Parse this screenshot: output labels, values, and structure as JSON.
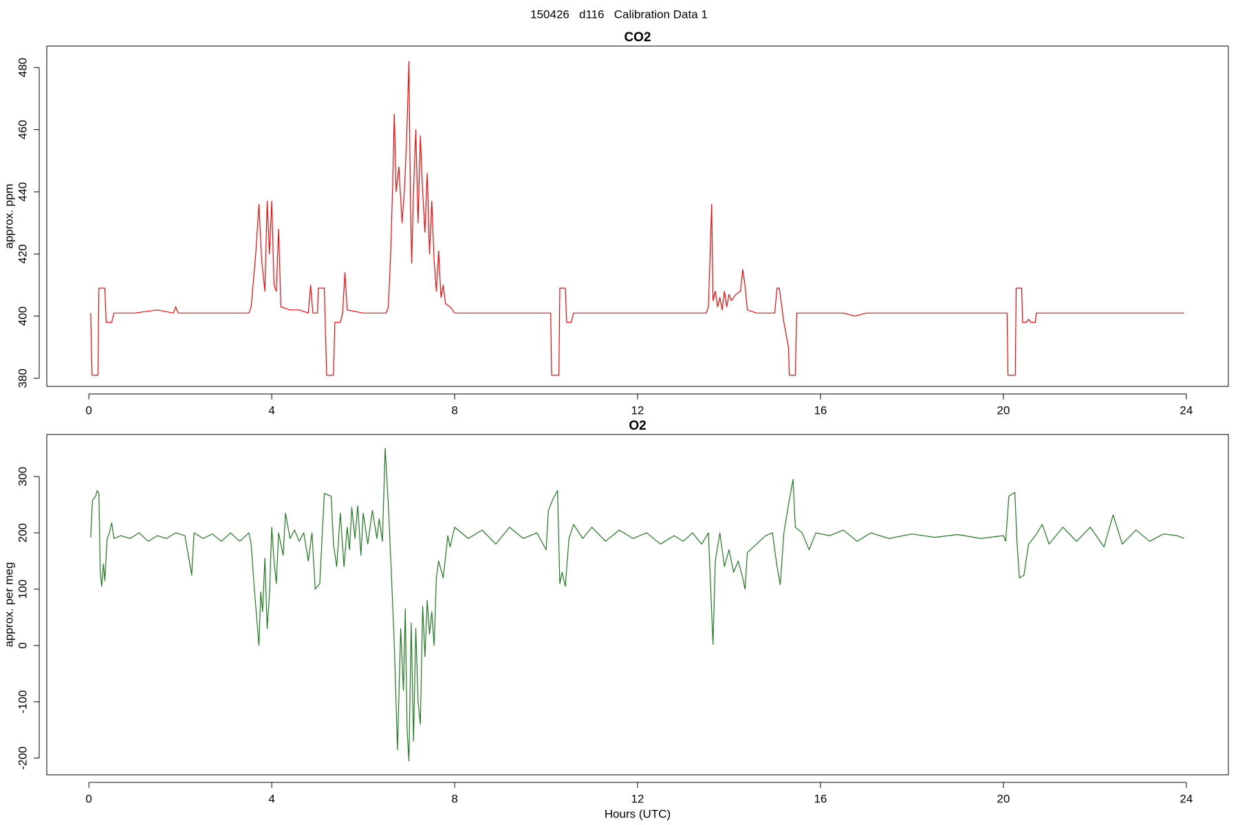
{
  "title": "150426   d116   Calibration Data 1",
  "chart_data": [
    {
      "type": "line",
      "title": "CO2",
      "ylabel": "approx. ppm",
      "x": [
        0.04,
        0.07,
        0.2,
        0.22,
        0.35,
        0.38,
        0.5,
        0.55,
        1.0,
        1.5,
        1.85,
        1.9,
        1.95,
        2.5,
        3.0,
        3.5,
        3.55,
        3.65,
        3.72,
        3.78,
        3.85,
        3.9,
        3.95,
        4.0,
        4.05,
        4.1,
        4.15,
        4.2,
        4.4,
        4.6,
        4.8,
        4.85,
        4.9,
        5.0,
        5.02,
        5.15,
        5.2,
        5.35,
        5.38,
        5.5,
        5.55,
        5.6,
        5.65,
        6.0,
        6.3,
        6.5,
        6.55,
        6.6,
        6.65,
        6.68,
        6.72,
        6.78,
        6.85,
        6.9,
        6.95,
        7.0,
        7.03,
        7.06,
        7.1,
        7.15,
        7.2,
        7.25,
        7.3,
        7.35,
        7.4,
        7.45,
        7.5,
        7.55,
        7.6,
        7.65,
        7.7,
        7.75,
        7.8,
        7.9,
        8.0,
        8.5,
        9.0,
        9.5,
        10.0,
        10.1,
        10.12,
        10.28,
        10.3,
        10.42,
        10.45,
        10.55,
        10.6,
        11.0,
        11.5,
        12.0,
        12.5,
        13.0,
        13.5,
        13.55,
        13.62,
        13.65,
        13.7,
        13.75,
        13.8,
        13.85,
        13.9,
        13.95,
        14.0,
        14.05,
        14.15,
        14.25,
        14.3,
        14.35,
        14.4,
        14.6,
        14.8,
        15.0,
        15.05,
        15.1,
        15.2,
        15.3,
        15.32,
        15.45,
        15.48,
        16.0,
        16.5,
        16.75,
        17.0,
        17.5,
        18.0,
        18.5,
        19.0,
        19.5,
        20.0,
        20.08,
        20.1,
        20.26,
        20.28,
        20.4,
        20.42,
        20.5,
        20.55,
        20.6,
        20.7,
        20.72,
        21.0,
        21.5,
        22.0,
        22.5,
        23.0,
        23.5,
        23.95
      ],
      "series": [
        {
          "name": "CO2",
          "color": "#ff0000",
          "values": [
            401,
            381,
            381,
            409,
            409,
            398,
            398,
            401,
            401,
            402,
            401,
            403,
            401,
            401,
            401,
            401,
            403,
            420,
            436,
            418,
            408,
            437,
            420,
            437,
            410,
            408,
            428,
            403,
            402,
            402,
            401,
            410,
            401,
            401,
            409,
            409,
            381,
            381,
            398,
            398,
            401,
            414,
            402,
            401,
            401,
            401,
            403,
            420,
            445,
            465,
            440,
            448,
            430,
            440,
            457,
            482,
            440,
            417,
            440,
            460,
            430,
            458,
            440,
            427,
            446,
            420,
            437,
            418,
            408,
            421,
            406,
            410,
            404,
            403,
            401,
            401,
            401,
            401,
            401,
            401,
            381,
            381,
            409,
            409,
            398,
            398,
            401,
            401,
            401,
            401,
            401,
            401,
            401,
            403,
            436,
            405,
            408,
            403,
            406,
            402,
            408,
            403,
            407,
            405,
            407,
            408,
            415,
            410,
            402,
            401,
            401,
            401,
            409,
            409,
            398,
            390,
            381,
            381,
            401,
            401,
            401,
            400,
            401,
            401,
            401,
            401,
            401,
            401,
            401,
            401,
            381,
            381,
            409,
            409,
            398,
            398,
            399,
            398,
            398,
            401,
            401,
            401,
            401,
            401,
            401,
            401,
            401
          ]
        }
      ],
      "xlim": [
        -0.92,
        24.92
      ],
      "xticks": [
        0,
        4,
        8,
        12,
        16,
        20,
        24
      ],
      "ylim": [
        377.4,
        486.9
      ],
      "yticks": [
        380,
        400,
        420,
        440,
        460,
        480
      ]
    },
    {
      "type": "line",
      "title": "O2",
      "ylabel": "approx. per meg",
      "xlabel": "Hours (UTC)",
      "x": [
        0.04,
        0.08,
        0.15,
        0.18,
        0.22,
        0.25,
        0.28,
        0.32,
        0.35,
        0.4,
        0.45,
        0.5,
        0.55,
        0.7,
        0.9,
        1.1,
        1.3,
        1.5,
        1.7,
        1.9,
        2.1,
        2.25,
        2.3,
        2.5,
        2.7,
        2.9,
        3.1,
        3.3,
        3.5,
        3.55,
        3.62,
        3.68,
        3.72,
        3.76,
        3.8,
        3.85,
        3.9,
        3.95,
        4.0,
        4.05,
        4.1,
        4.15,
        4.25,
        4.3,
        4.4,
        4.5,
        4.6,
        4.7,
        4.8,
        4.88,
        4.95,
        5.05,
        5.15,
        5.3,
        5.35,
        5.42,
        5.5,
        5.58,
        5.65,
        5.7,
        5.75,
        5.82,
        5.88,
        5.95,
        6.0,
        6.1,
        6.2,
        6.3,
        6.35,
        6.42,
        6.48,
        6.55,
        6.62,
        6.68,
        6.75,
        6.82,
        6.88,
        6.92,
        6.96,
        7.0,
        7.05,
        7.1,
        7.15,
        7.2,
        7.25,
        7.3,
        7.35,
        7.4,
        7.45,
        7.5,
        7.55,
        7.6,
        7.65,
        7.75,
        7.85,
        7.9,
        8.0,
        8.3,
        8.6,
        8.9,
        9.2,
        9.5,
        9.8,
        10.0,
        10.05,
        10.15,
        10.25,
        10.3,
        10.35,
        10.42,
        10.5,
        10.6,
        10.8,
        11.0,
        11.3,
        11.6,
        11.9,
        12.2,
        12.5,
        12.8,
        13.0,
        13.2,
        13.4,
        13.55,
        13.62,
        13.65,
        13.7,
        13.8,
        13.9,
        14.0,
        14.1,
        14.2,
        14.3,
        14.35,
        14.4,
        14.6,
        14.8,
        14.95,
        15.05,
        15.12,
        15.2,
        15.3,
        15.4,
        15.45,
        15.6,
        15.75,
        15.9,
        16.2,
        16.5,
        16.8,
        17.1,
        17.5,
        18.0,
        18.5,
        19.0,
        19.5,
        20.0,
        20.05,
        20.12,
        20.25,
        20.3,
        20.35,
        20.45,
        20.55,
        20.7,
        20.85,
        21.0,
        21.3,
        21.6,
        21.9,
        22.2,
        22.4,
        22.6,
        22.9,
        23.2,
        23.5,
        23.8,
        23.95
      ],
      "series": [
        {
          "name": "O2",
          "color": "#1a7a1a",
          "values": [
            192,
            258,
            265,
            275,
            270,
            130,
            105,
            145,
            115,
            190,
            200,
            218,
            190,
            195,
            190,
            200,
            185,
            195,
            190,
            200,
            195,
            125,
            200,
            190,
            198,
            185,
            200,
            185,
            200,
            180,
            100,
            40,
            0,
            95,
            60,
            155,
            30,
            90,
            210,
            150,
            110,
            200,
            160,
            235,
            190,
            205,
            185,
            200,
            150,
            200,
            100,
            110,
            270,
            265,
            180,
            140,
            235,
            140,
            210,
            170,
            245,
            190,
            248,
            160,
            235,
            180,
            240,
            190,
            225,
            185,
            350,
            250,
            120,
            0,
            -185,
            30,
            -80,
            65,
            -150,
            -205,
            40,
            -170,
            30,
            -100,
            -140,
            70,
            -20,
            80,
            20,
            60,
            0,
            120,
            150,
            120,
            195,
            175,
            210,
            190,
            205,
            180,
            210,
            190,
            200,
            170,
            240,
            260,
            275,
            110,
            130,
            105,
            190,
            215,
            190,
            210,
            185,
            205,
            190,
            200,
            180,
            195,
            185,
            200,
            180,
            200,
            60,
            2,
            150,
            200,
            140,
            170,
            130,
            150,
            120,
            100,
            165,
            180,
            195,
            200,
            140,
            108,
            200,
            250,
            295,
            210,
            200,
            170,
            200,
            195,
            205,
            185,
            200,
            190,
            198,
            192,
            197,
            190,
            195,
            185,
            265,
            272,
            180,
            120,
            125,
            180,
            195,
            215,
            180,
            210,
            185,
            210,
            175,
            232,
            180,
            205,
            185,
            198,
            195,
            190
          ]
        }
      ],
      "xlim": [
        -0.92,
        24.92
      ],
      "xticks": [
        0,
        4,
        8,
        12,
        16,
        20,
        24
      ],
      "ylim": [
        -229.6,
        374.6
      ],
      "yticks": [
        -200,
        -100,
        0,
        100,
        200,
        300
      ]
    }
  ]
}
